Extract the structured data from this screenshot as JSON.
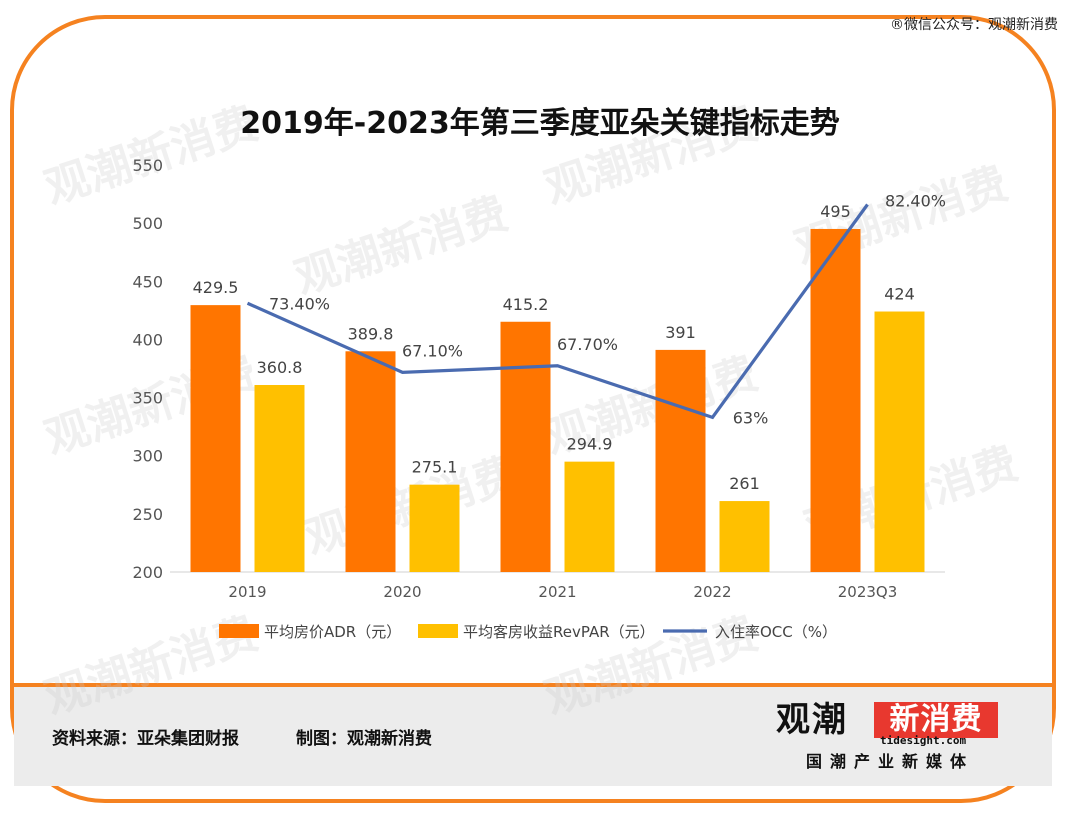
{
  "header": {
    "wechat": "®微信公众号：观潮新消费"
  },
  "chart_data": {
    "type": "bar",
    "title": "2019年-2023年第三季度亚朵关键指标走势",
    "categories": [
      "2019",
      "2020",
      "2021",
      "2022",
      "2023Q3"
    ],
    "ylim": [
      200,
      550
    ],
    "yticks": [
      200,
      250,
      300,
      350,
      400,
      450,
      500,
      550
    ],
    "series": [
      {
        "name": "平均房价ADR（元）",
        "kind": "bar",
        "color": "#ff7500",
        "values": [
          429.5,
          389.8,
          415.2,
          391,
          495
        ]
      },
      {
        "name": "平均客房收益RevPAR（元）",
        "kind": "bar",
        "color": "#ffc000",
        "values": [
          360.8,
          275.1,
          294.9,
          261,
          424
        ]
      },
      {
        "name": "入住率OCC（%）",
        "kind": "line",
        "color": "#4a6bb0",
        "values": [
          73.4,
          67.1,
          67.7,
          63.0,
          82.4
        ],
        "labels": [
          "73.40%",
          "67.10%",
          "67.70%",
          "63%",
          "82.40%"
        ]
      }
    ],
    "bar_labels": [
      [
        "429.5",
        "389.8",
        "415.2",
        "391",
        "495"
      ],
      [
        "360.8",
        "275.1",
        "294.9",
        "261",
        "424"
      ]
    ],
    "grid": false,
    "legend": "bottom"
  },
  "footer": {
    "source": "资料来源：亚朵集团财报",
    "maker": "制图：观潮新消费",
    "brand_main": "观潮",
    "brand_red": "新消费",
    "brand_site": "tidesight.com",
    "brand_sub": "国潮产业新媒体"
  }
}
